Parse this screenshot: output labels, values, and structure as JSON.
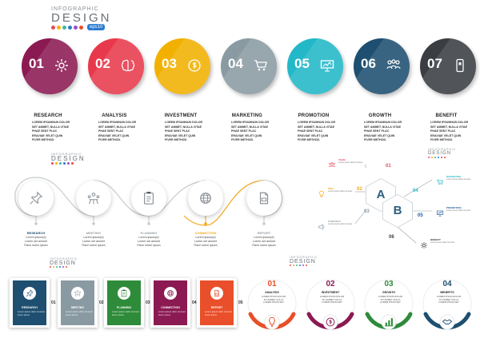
{
  "logo": {
    "line1": "INFOGRAPHIC",
    "line2": "DESIGN",
    "eps": "eps10",
    "dot_colors": [
      "#e84a5f",
      "#f5b700",
      "#3fb6a8",
      "#2a7bd1",
      "#9c4fc4",
      "#e94f2a"
    ]
  },
  "section1": {
    "steps": [
      {
        "num": "01",
        "title": "RESEARCH",
        "color": "#8b1a52",
        "icon": "gear-icon",
        "body": [
          "LOREM IPSUMNUN DOLOR",
          "SET AMMET, NULLA VITAE",
          "PHAE SENT PLAC",
          "ERAVIAE VELET QUIN",
          "FIVER METHOD."
        ]
      },
      {
        "num": "02",
        "title": "ANALYSIS",
        "color": "#e8394c",
        "icon": "brain-icon",
        "body": [
          "LOREM IPSUMNUN DOLOR",
          "SET AMMET, NULLA VITAE",
          "PHAE SENT PLAC",
          "ERAVIAE VELET QUIN",
          "FIVER METHOD."
        ]
      },
      {
        "num": "03",
        "title": "INVESTMENT",
        "color": "#f2b100",
        "icon": "money-cycle-icon",
        "body": [
          "LOREM IPSUMNUN DOLOR",
          "SET AMMET, NULLA VITAE",
          "PHAE SENT PLAC",
          "ERAVIAE VELET QUIN",
          "FIVER METHOD."
        ]
      },
      {
        "num": "04",
        "title": "MARKETING",
        "color": "#8a9aa3",
        "icon": "cart-icon",
        "body": [
          "LOREM IPSUMNUN DOLOR",
          "SET AMMET, NULLA VITAE",
          "PHAE SENT PLAC",
          "ERAVIAE VELET QUIN",
          "FIVER METHOD."
        ]
      },
      {
        "num": "05",
        "title": "PROMOTION",
        "color": "#22b8c8",
        "icon": "billboard-icon",
        "body": [
          "LOREM IPSUMNUN DOLOR",
          "SET AMMET, NULLA VITAE",
          "PHAE SENT PLAC",
          "ERAVIAE VELET QUIN",
          "FIVER METHOD."
        ]
      },
      {
        "num": "06",
        "title": "GROWTH",
        "color": "#1e4f70",
        "icon": "team-icon",
        "body": [
          "LOREM IPSUMNUN DOLOR",
          "SET AMMET, NULLA VITAE",
          "PHAE SENT PLAC",
          "ERAVIAE VELET QUIN",
          "FIVER METHOD."
        ]
      },
      {
        "num": "07",
        "title": "BENEFIT",
        "color": "#3a3d42",
        "icon": "phone-icon",
        "body": [
          "LOREM IPSUMNUN DOLOR",
          "SET AMMET, NULLA VITAE",
          "PHAE SENT PLAC",
          "ERAVIAE VELET QUIN",
          "FIVER METHOD."
        ]
      }
    ]
  },
  "section2": {
    "line_color": "#c7cbd0",
    "highlight_color": "#f2a81b",
    "steps": [
      {
        "label": "RESEARCH",
        "label_color": "#1e4f70",
        "icon": "pin-icon",
        "body": [
          "Lorem ipsum(d)",
          "Lorem set ammet",
          "Flave lorem ipsum"
        ]
      },
      {
        "label": "MEETING",
        "label_color": "#9aa0a6",
        "icon": "meeting-icon",
        "body": [
          "Lorem ipsum(d)",
          "Lorem set ammet",
          "Flave lorem ipsum"
        ]
      },
      {
        "label": "PLANNING",
        "label_color": "#9aa0a6",
        "icon": "clipboard-icon",
        "body": [
          "Lorem ipsum(d)",
          "Lorem set ammet",
          "Flave lorem ipsum"
        ]
      },
      {
        "label": "CONNECTION",
        "label_color": "#f2a81b",
        "icon": "globe-icon",
        "body": [
          "Lorem ipsum(d)",
          "Lorem set ammet",
          "Flave lorem ipsum"
        ]
      },
      {
        "label": "REPORT",
        "label_color": "#9aa0a6",
        "icon": "report-icon",
        "body": [
          "Lorem ipsum(d)",
          "Lorem set ammet",
          "Flave lorem ipsum"
        ]
      }
    ]
  },
  "section3": {
    "hex_a": "A",
    "hex_b": "B",
    "items": [
      {
        "num": "01",
        "title": "TEAM",
        "color": "#e84a5f",
        "icon": "team-icon"
      },
      {
        "num": "02",
        "title": "IDEA",
        "color": "#f2a81b",
        "icon": "bulb-icon"
      },
      {
        "num": "03",
        "title": "STRATEGY",
        "color": "#8a9aa3",
        "icon": "megaphone-icon"
      },
      {
        "num": "04",
        "title": "MARKETING",
        "color": "#22b8c8",
        "icon": "cart-icon"
      },
      {
        "num": "05",
        "title": "PROMOTION",
        "color": "#1e5b9c",
        "icon": "billboard-icon"
      },
      {
        "num": "06",
        "title": "BENEFIT",
        "color": "#3a3d42",
        "icon": "gear-icon"
      }
    ],
    "item_body": "Lorem ipsum dolor sit amet"
  },
  "section4": {
    "cards": [
      {
        "num": "01",
        "title": "RESEARCH",
        "color": "#1e4f70",
        "icon": "pin-icon"
      },
      {
        "num": "02",
        "title": "MEETING",
        "color": "#8a9aa3",
        "icon": "meeting-icon"
      },
      {
        "num": "03",
        "title": "PLANNING",
        "color": "#2e8b3a",
        "icon": "clipboard-icon"
      },
      {
        "num": "04",
        "title": "CONNECTION",
        "color": "#8b1a52",
        "icon": "globe-icon"
      },
      {
        "num": "05",
        "title": "REPORT",
        "color": "#e94f2a",
        "icon": "report-icon"
      }
    ],
    "body": "Lorem ipsum dolor sit amet lorem ipsum"
  },
  "section5": {
    "steps": [
      {
        "num": "01",
        "title": "ANALYSIS",
        "color": "#e94f2a",
        "icon": "bulb-icon"
      },
      {
        "num": "02",
        "title": "INVESTMENT",
        "color": "#8b1a52",
        "icon": "money-cycle-icon"
      },
      {
        "num": "03",
        "title": "GROWTH",
        "color": "#2e8b3a",
        "icon": "chart-icon"
      },
      {
        "num": "04",
        "title": "BENEFITS",
        "color": "#1e4f70",
        "icon": "handshake-icon"
      }
    ],
    "body": [
      "LOREM IPSUM DOLOR",
      "SIT AMMET NULLA",
      "LOREM IPSUM SET"
    ]
  }
}
